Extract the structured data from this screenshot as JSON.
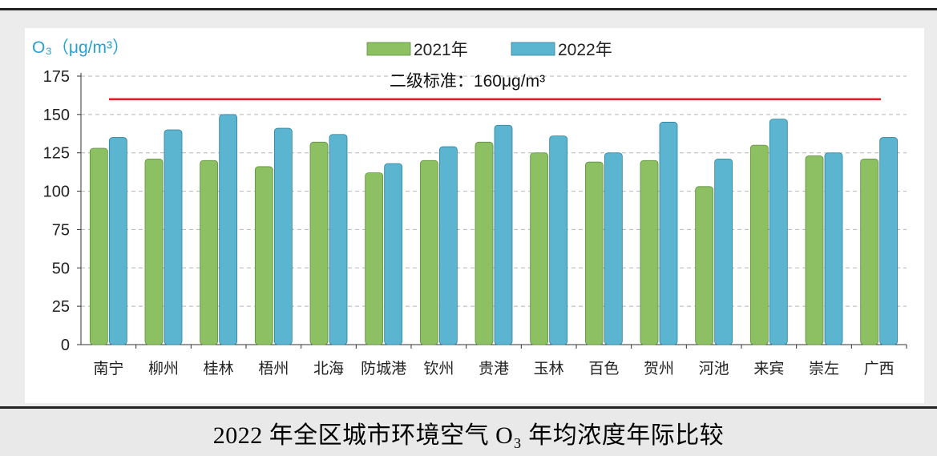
{
  "caption": "2022 年全区城市环境空气 O₃ 年均浓度年际比较",
  "chart_data": {
    "type": "bar",
    "ylabel": "O₃（μg/m³）",
    "ylim": [
      0,
      175
    ],
    "yticks": [
      0,
      25,
      50,
      75,
      100,
      125,
      150,
      175
    ],
    "grid": true,
    "legend_position": "top-center",
    "categories": [
      "南宁",
      "柳州",
      "桂林",
      "梧州",
      "北海",
      "防城港",
      "钦州",
      "贵港",
      "玉林",
      "百色",
      "贺州",
      "河池",
      "来宾",
      "崇左",
      "广西"
    ],
    "series": [
      {
        "name": "2021年",
        "color": "#8cc063",
        "values": [
          128,
          121,
          120,
          116,
          132,
          112,
          120,
          132,
          125,
          119,
          120,
          103,
          130,
          123,
          121
        ]
      },
      {
        "name": "2022年",
        "color": "#5bb5d1",
        "values": [
          135,
          140,
          150,
          141,
          137,
          118,
          129,
          143,
          136,
          125,
          145,
          121,
          147,
          125,
          135
        ]
      }
    ],
    "reference_line": {
      "value": 160,
      "label": "二级标准：160μg/m³",
      "color": "#e02020"
    }
  }
}
